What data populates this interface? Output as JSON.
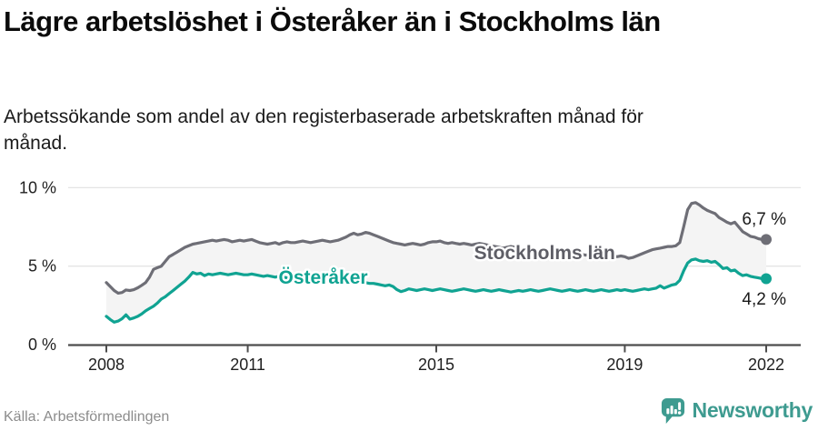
{
  "header": {
    "title": "Lägre arbetslöshet i Österåker än i Stockholms län",
    "subtitle": "Arbetssökande som andel av den registerbaserade arbetskraften månad för månad."
  },
  "footer": {
    "source": "Källa: Arbetsförmedlingen",
    "brand": "Newsworthy"
  },
  "colors": {
    "stockholm_line": "#6E6E76",
    "stockholm_label": "#5E5E66",
    "osteraker_line": "#10A392",
    "band_fill": "#F4F4F4",
    "gridline": "#E4E4E4",
    "axis": "#4D4D4D",
    "tick_text": "#1F1F1F",
    "end_label_text": "#1A1A1A",
    "brand_teal": "#3E9B90"
  },
  "chart_data": {
    "type": "line",
    "title": "Lägre arbetslöshet i Österåker än i Stockholms län",
    "subtitle": "Arbetssökande som andel av den registerbaserade arbetskraften månad för månad.",
    "unit": "%",
    "x_start_year": 2008,
    "x_step_months": 1,
    "xlim": [
      2008,
      2022.1
    ],
    "ylim": [
      0,
      10
    ],
    "grid": "horizontal",
    "legend_position": "inline-labels",
    "y_ticks": [
      {
        "value": 0,
        "label": "0 %"
      },
      {
        "value": 5,
        "label": "5 %"
      },
      {
        "value": 10,
        "label": "10 %"
      }
    ],
    "x_ticks": [
      {
        "value": 2008,
        "label": "2008"
      },
      {
        "value": 2011,
        "label": "2011"
      },
      {
        "value": 2015,
        "label": "2015"
      },
      {
        "value": 2019,
        "label": "2019"
      },
      {
        "value": 2022,
        "label": "2022"
      }
    ],
    "series": [
      {
        "name": "Stockholms län",
        "color": "#6E6E76",
        "end_label": "6,7 %",
        "label_anchor": {
          "year": 2017.3,
          "value": 5.85
        },
        "values": [
          3.95,
          3.7,
          3.45,
          3.28,
          3.32,
          3.48,
          3.45,
          3.5,
          3.62,
          3.78,
          3.95,
          4.3,
          4.8,
          4.9,
          5.0,
          5.3,
          5.6,
          5.75,
          5.9,
          6.05,
          6.2,
          6.3,
          6.4,
          6.45,
          6.5,
          6.55,
          6.6,
          6.65,
          6.6,
          6.65,
          6.7,
          6.65,
          6.55,
          6.6,
          6.65,
          6.6,
          6.65,
          6.7,
          6.6,
          6.5,
          6.45,
          6.4,
          6.45,
          6.5,
          6.4,
          6.5,
          6.55,
          6.5,
          6.5,
          6.55,
          6.6,
          6.55,
          6.5,
          6.55,
          6.6,
          6.65,
          6.6,
          6.55,
          6.6,
          6.65,
          6.75,
          6.85,
          7.0,
          7.1,
          7.0,
          7.05,
          7.15,
          7.1,
          7.0,
          6.9,
          6.8,
          6.7,
          6.6,
          6.5,
          6.45,
          6.4,
          6.35,
          6.4,
          6.45,
          6.4,
          6.35,
          6.4,
          6.5,
          6.55,
          6.55,
          6.6,
          6.5,
          6.45,
          6.5,
          6.45,
          6.4,
          6.45,
          6.4,
          6.35,
          6.4,
          6.45,
          6.4,
          6.35,
          6.3,
          6.25,
          6.2,
          6.15,
          6.2,
          6.25,
          6.2,
          6.15,
          6.1,
          6.05,
          6.0,
          5.95,
          5.9,
          5.95,
          5.9,
          5.85,
          5.9,
          5.85,
          5.8,
          5.85,
          5.8,
          5.75,
          5.8,
          5.75,
          5.7,
          5.75,
          5.7,
          5.65,
          5.7,
          5.65,
          5.6,
          5.65,
          5.6,
          5.65,
          5.6,
          5.5,
          5.55,
          5.65,
          5.75,
          5.85,
          5.95,
          6.05,
          6.1,
          6.15,
          6.2,
          6.25,
          6.25,
          6.3,
          6.5,
          7.5,
          8.6,
          9.0,
          9.05,
          8.9,
          8.7,
          8.55,
          8.45,
          8.35,
          8.1,
          7.95,
          7.8,
          7.7,
          7.8,
          7.5,
          7.2,
          7.05,
          6.9,
          6.85,
          6.75,
          6.7,
          6.7
        ]
      },
      {
        "name": "Österåker",
        "color": "#10A392",
        "end_label": "4,2 %",
        "label_anchor": {
          "year": 2012.6,
          "value": 4.3
        },
        "values": [
          1.8,
          1.6,
          1.43,
          1.5,
          1.65,
          1.9,
          1.62,
          1.7,
          1.8,
          1.95,
          2.15,
          2.3,
          2.45,
          2.65,
          2.9,
          3.05,
          3.25,
          3.45,
          3.65,
          3.85,
          4.05,
          4.3,
          4.6,
          4.5,
          4.55,
          4.4,
          4.5,
          4.45,
          4.5,
          4.55,
          4.5,
          4.45,
          4.5,
          4.55,
          4.5,
          4.45,
          4.45,
          4.5,
          4.45,
          4.4,
          4.35,
          4.4,
          4.35,
          4.3,
          4.35,
          4.3,
          4.25,
          4.3,
          4.25,
          4.2,
          4.25,
          4.2,
          4.15,
          4.2,
          4.15,
          4.1,
          4.15,
          4.1,
          4.05,
          4.1,
          4.05,
          4.0,
          4.05,
          4.0,
          3.95,
          3.95,
          3.95,
          3.9,
          3.9,
          3.85,
          3.8,
          3.75,
          3.8,
          3.7,
          3.5,
          3.38,
          3.45,
          3.55,
          3.5,
          3.45,
          3.5,
          3.55,
          3.5,
          3.45,
          3.5,
          3.55,
          3.5,
          3.45,
          3.4,
          3.45,
          3.5,
          3.55,
          3.5,
          3.45,
          3.4,
          3.45,
          3.5,
          3.45,
          3.4,
          3.45,
          3.5,
          3.45,
          3.4,
          3.35,
          3.4,
          3.45,
          3.4,
          3.45,
          3.5,
          3.45,
          3.4,
          3.45,
          3.5,
          3.55,
          3.5,
          3.45,
          3.4,
          3.45,
          3.5,
          3.45,
          3.4,
          3.45,
          3.5,
          3.45,
          3.4,
          3.45,
          3.5,
          3.45,
          3.4,
          3.45,
          3.5,
          3.45,
          3.5,
          3.45,
          3.4,
          3.45,
          3.5,
          3.55,
          3.5,
          3.55,
          3.6,
          3.75,
          3.6,
          3.7,
          3.8,
          3.85,
          4.1,
          4.7,
          5.2,
          5.4,
          5.45,
          5.35,
          5.3,
          5.35,
          5.25,
          5.3,
          5.1,
          4.85,
          4.9,
          4.7,
          4.75,
          4.55,
          4.4,
          4.45,
          4.35,
          4.3,
          4.25,
          4.2,
          4.2
        ]
      }
    ]
  }
}
